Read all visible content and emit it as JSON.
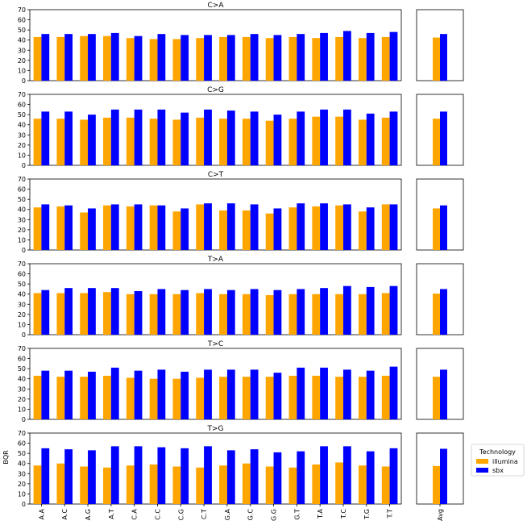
{
  "figure": {
    "ylabel": "BQR",
    "legend": {
      "title": "Technology",
      "entries": [
        "illumina",
        "sbx"
      ],
      "placement": "right-lower"
    },
    "colors": {
      "illumina": "#FFA500",
      "sbx": "#0000FF",
      "axes": "#000000",
      "background": "#FFFFFF"
    }
  },
  "chart_data": [
    {
      "type": "bar",
      "title": "C>A",
      "categories": [
        "A.A",
        "A.C",
        "A.G",
        "A.T",
        "C.A",
        "C.C",
        "C.G",
        "C.T",
        "G.A",
        "G.C",
        "G.G",
        "G.T",
        "T.A",
        "T.C",
        "T.G",
        "T.T"
      ],
      "ylim": [
        0,
        70
      ],
      "yticks": [
        0,
        10,
        20,
        30,
        40,
        50,
        60,
        70
      ],
      "series": [
        {
          "name": "illumina",
          "values": [
            43,
            43,
            44,
            44,
            42,
            41,
            41,
            42,
            43,
            43,
            42,
            43,
            42,
            43,
            42,
            43
          ]
        },
        {
          "name": "sbx",
          "values": [
            46,
            46,
            46,
            47,
            44,
            46,
            45,
            45,
            45,
            46,
            45,
            46,
            47,
            49,
            47,
            48
          ]
        }
      ],
      "avg": {
        "category": "Avg",
        "values": [
          42.5,
          46
        ]
      }
    },
    {
      "type": "bar",
      "title": "C>G",
      "categories": [
        "A.A",
        "A.C",
        "A.G",
        "A.T",
        "C.A",
        "C.C",
        "C.G",
        "C.T",
        "G.A",
        "G.C",
        "G.G",
        "G.T",
        "T.A",
        "T.C",
        "T.G",
        "T.T"
      ],
      "ylim": [
        0,
        70
      ],
      "yticks": [
        0,
        10,
        20,
        30,
        40,
        50,
        60,
        70
      ],
      "series": [
        {
          "name": "illumina",
          "values": [
            46,
            46,
            45,
            47,
            47,
            46,
            45,
            47,
            46,
            46,
            44,
            46,
            48,
            48,
            45,
            47
          ]
        },
        {
          "name": "sbx",
          "values": [
            53,
            53,
            50,
            55,
            55,
            55,
            52,
            55,
            54,
            53,
            50,
            53,
            55,
            55,
            51,
            53
          ]
        }
      ],
      "avg": {
        "category": "Avg",
        "values": [
          46,
          53
        ]
      }
    },
    {
      "type": "bar",
      "title": "C>T",
      "categories": [
        "A.A",
        "A.C",
        "A.G",
        "A.T",
        "C.A",
        "C.C",
        "C.G",
        "C.T",
        "G.A",
        "G.C",
        "G.G",
        "G.T",
        "T.A",
        "T.C",
        "T.G",
        "T.T"
      ],
      "ylim": [
        0,
        70
      ],
      "yticks": [
        0,
        10,
        20,
        30,
        40,
        50,
        60,
        70
      ],
      "series": [
        {
          "name": "illumina",
          "values": [
            42,
            43,
            37,
            44,
            43,
            44,
            38,
            45,
            39,
            39,
            36,
            42,
            43,
            44,
            38,
            45
          ]
        },
        {
          "name": "sbx",
          "values": [
            45,
            44,
            41,
            45,
            45,
            44,
            41,
            46,
            46,
            45,
            41,
            46,
            46,
            45,
            42,
            45
          ]
        }
      ],
      "avg": {
        "category": "Avg",
        "values": [
          41,
          44
        ]
      }
    },
    {
      "type": "bar",
      "title": "T>A",
      "categories": [
        "A.A",
        "A.C",
        "A.G",
        "A.T",
        "C.A",
        "C.C",
        "C.G",
        "C.T",
        "G.A",
        "G.C",
        "G.G",
        "G.T",
        "T.A",
        "T.C",
        "T.G",
        "T.T"
      ],
      "ylim": [
        0,
        70
      ],
      "yticks": [
        0,
        10,
        20,
        30,
        40,
        50,
        60,
        70
      ],
      "series": [
        {
          "name": "illumina",
          "values": [
            41,
            41,
            41,
            42,
            40,
            40,
            40,
            41,
            40,
            40,
            39,
            40,
            40,
            40,
            40,
            41
          ]
        },
        {
          "name": "sbx",
          "values": [
            44,
            46,
            46,
            46,
            43,
            45,
            44,
            45,
            44,
            45,
            44,
            45,
            46,
            48,
            47,
            48
          ]
        }
      ],
      "avg": {
        "category": "Avg",
        "values": [
          40.5,
          45
        ]
      }
    },
    {
      "type": "bar",
      "title": "T>C",
      "categories": [
        "A.A",
        "A.C",
        "A.G",
        "A.T",
        "C.A",
        "C.C",
        "C.G",
        "C.T",
        "G.A",
        "G.C",
        "G.G",
        "G.T",
        "T.A",
        "T.C",
        "T.G",
        "T.T"
      ],
      "ylim": [
        0,
        70
      ],
      "yticks": [
        0,
        10,
        20,
        30,
        40,
        50,
        60,
        70
      ],
      "series": [
        {
          "name": "illumina",
          "values": [
            43,
            42,
            42,
            43,
            41,
            40,
            40,
            41,
            42,
            42,
            42,
            43,
            43,
            42,
            42,
            43
          ]
        },
        {
          "name": "sbx",
          "values": [
            48,
            48,
            47,
            51,
            48,
            49,
            47,
            49,
            49,
            49,
            46,
            51,
            51,
            49,
            48,
            52
          ]
        }
      ],
      "avg": {
        "category": "Avg",
        "values": [
          42,
          49
        ]
      }
    },
    {
      "type": "bar",
      "title": "T>G",
      "categories": [
        "A.A",
        "A.C",
        "A.G",
        "A.T",
        "C.A",
        "C.C",
        "C.G",
        "C.T",
        "G.A",
        "G.C",
        "G.G",
        "G.T",
        "T.A",
        "T.C",
        "T.G",
        "T.T"
      ],
      "ylim": [
        0,
        70
      ],
      "yticks": [
        0,
        10,
        20,
        30,
        40,
        50,
        60,
        70
      ],
      "series": [
        {
          "name": "illumina",
          "values": [
            38,
            40,
            37,
            36,
            38,
            39,
            37,
            36,
            38,
            40,
            37,
            36,
            39,
            41,
            38,
            37
          ]
        },
        {
          "name": "sbx",
          "values": [
            55,
            54,
            53,
            57,
            57,
            56,
            55,
            57,
            53,
            54,
            51,
            52,
            57,
            57,
            52,
            55
          ]
        }
      ],
      "avg": {
        "category": "Avg",
        "values": [
          37.5,
          54.5
        ]
      }
    }
  ]
}
